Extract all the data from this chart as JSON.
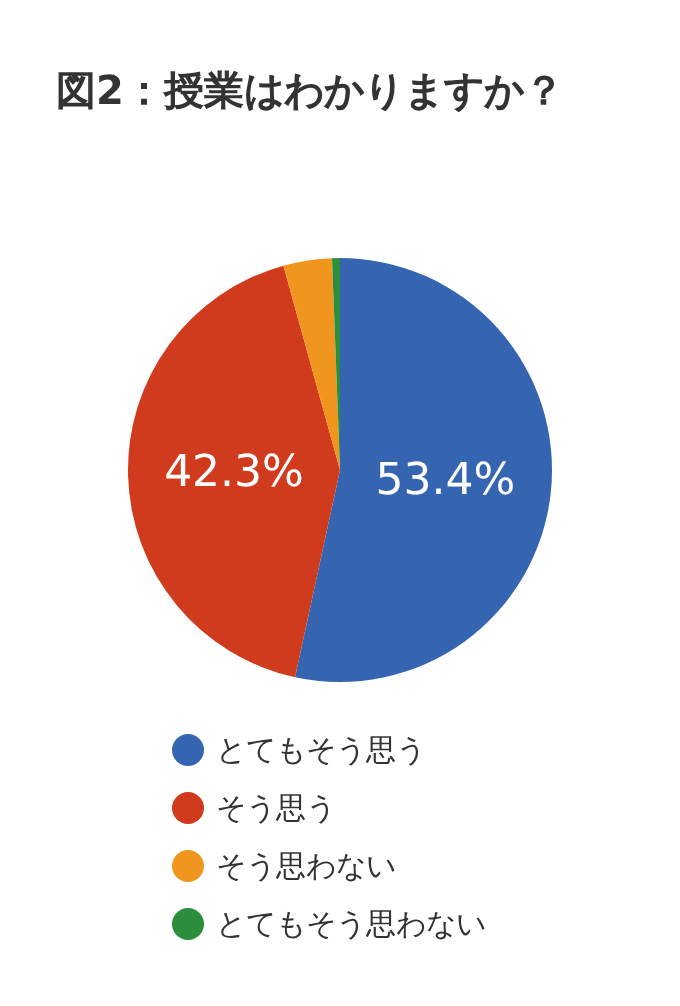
{
  "chart_data": {
    "type": "pie",
    "title": "図2：授業はわかりますか？",
    "categories": [
      "とてもそう思う",
      "そう思う",
      "そう思わない",
      "とてもそう思わない"
    ],
    "values": [
      53.4,
      42.3,
      3.7,
      0.6
    ],
    "value_labels": [
      "53.4%",
      "42.3%",
      null,
      null
    ],
    "colors": [
      "#3565b0",
      "#d13b1d",
      "#f0961e",
      "#2a8e3c"
    ],
    "legend": "bottom"
  }
}
